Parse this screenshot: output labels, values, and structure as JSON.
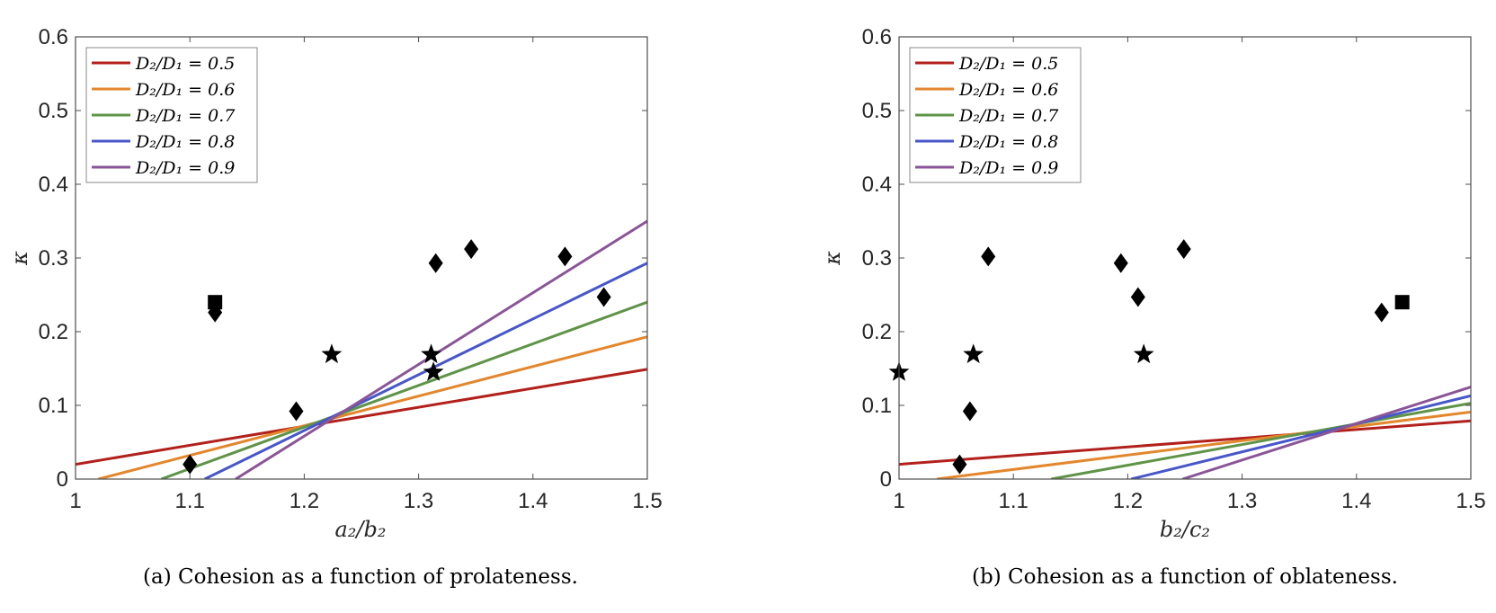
{
  "chart_data": [
    {
      "type": "line",
      "panel": "a",
      "caption": "(a) Cohesion as a function of prolateness.",
      "xlabel": "a₂/b₂",
      "ylabel": "κ",
      "xlim": [
        1,
        1.5
      ],
      "ylim": [
        0,
        0.6
      ],
      "xticks": [
        1,
        1.1,
        1.2,
        1.3,
        1.4,
        1.5
      ],
      "xtick_labels": [
        "1",
        "1.1",
        "1.2",
        "1.3",
        "1.4",
        "1.5"
      ],
      "yticks": [
        0,
        0.1,
        0.2,
        0.3,
        0.4,
        0.5,
        0.6
      ],
      "ytick_labels": [
        "0",
        "0.1",
        "0.2",
        "0.3",
        "0.4",
        "0.5",
        "0.6"
      ],
      "grid": false,
      "legend_position": "top-left",
      "series": [
        {
          "name": "D₂/D₁ = 0.5",
          "color": "#b2201c",
          "x": [
            1.0,
            1.5
          ],
          "y": [
            0.02,
            0.149
          ]
        },
        {
          "name": "D₂/D₁ = 0.6",
          "color": "#e3872d",
          "x": [
            1.02,
            1.5
          ],
          "y": [
            0.0,
            0.193
          ]
        },
        {
          "name": "D₂/D₁ = 0.7",
          "color": "#5f9448",
          "x": [
            1.075,
            1.5
          ],
          "y": [
            0.0,
            0.24
          ]
        },
        {
          "name": "D₂/D₁ = 0.8",
          "color": "#4756c9",
          "x": [
            1.113,
            1.5
          ],
          "y": [
            0.0,
            0.293
          ]
        },
        {
          "name": "D₂/D₁ = 0.9",
          "color": "#8a5597",
          "x": [
            1.14,
            1.5
          ],
          "y": [
            0.0,
            0.35
          ]
        }
      ],
      "markers": {
        "diamond": [
          [
            1.1,
            0.02
          ],
          [
            1.122,
            0.226
          ],
          [
            1.193,
            0.092
          ],
          [
            1.315,
            0.293
          ],
          [
            1.346,
            0.312
          ],
          [
            1.428,
            0.302
          ],
          [
            1.462,
            0.247
          ]
        ],
        "square": [
          [
            1.122,
            0.24
          ]
        ],
        "star": [
          [
            1.224,
            0.169
          ],
          [
            1.311,
            0.169
          ],
          [
            1.313,
            0.145
          ]
        ]
      }
    },
    {
      "type": "line",
      "panel": "b",
      "caption": "(b) Cohesion as a function of oblateness.",
      "xlabel": "b₂/c₂",
      "ylabel": "κ",
      "xlim": [
        1,
        1.5
      ],
      "ylim": [
        0,
        0.6
      ],
      "xticks": [
        1,
        1.1,
        1.2,
        1.3,
        1.4,
        1.5
      ],
      "xtick_labels": [
        "1",
        "1.1",
        "1.2",
        "1.3",
        "1.4",
        "1.5"
      ],
      "yticks": [
        0,
        0.1,
        0.2,
        0.3,
        0.4,
        0.5,
        0.6
      ],
      "ytick_labels": [
        "0",
        "0.1",
        "0.2",
        "0.3",
        "0.4",
        "0.5",
        "0.6"
      ],
      "grid": false,
      "legend_position": "top-left",
      "series": [
        {
          "name": "D₂/D₁ = 0.5",
          "color": "#b2201c",
          "x": [
            1.0,
            1.5
          ],
          "y": [
            0.02,
            0.079
          ]
        },
        {
          "name": "D₂/D₁ = 0.6",
          "color": "#e3872d",
          "x": [
            1.033,
            1.5
          ],
          "y": [
            0.0,
            0.091
          ]
        },
        {
          "name": "D₂/D₁ = 0.7",
          "color": "#5f9448",
          "x": [
            1.133,
            1.5
          ],
          "y": [
            0.0,
            0.103
          ]
        },
        {
          "name": "D₂/D₁ = 0.8",
          "color": "#4756c9",
          "x": [
            1.203,
            1.5
          ],
          "y": [
            0.0,
            0.113
          ]
        },
        {
          "name": "D₂/D₁ = 0.9",
          "color": "#8a5597",
          "x": [
            1.248,
            1.5
          ],
          "y": [
            0.0,
            0.125
          ]
        }
      ],
      "markers": {
        "diamond": [
          [
            1.053,
            0.02
          ],
          [
            1.062,
            0.092
          ],
          [
            1.078,
            0.302
          ],
          [
            1.194,
            0.293
          ],
          [
            1.209,
            0.247
          ],
          [
            1.249,
            0.312
          ],
          [
            1.422,
            0.226
          ]
        ],
        "square": [
          [
            1.44,
            0.24
          ]
        ],
        "star": [
          [
            1.0,
            0.145
          ],
          [
            1.065,
            0.169
          ],
          [
            1.214,
            0.169
          ]
        ]
      }
    }
  ]
}
